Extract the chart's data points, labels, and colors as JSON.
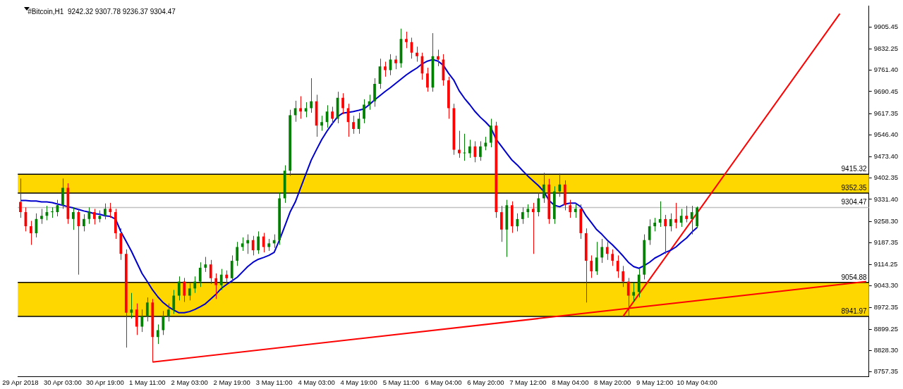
{
  "chart_data": {
    "type": "candlestick",
    "title": "#Bitcoin,H1  9242.32 9307.78 9236.37 9304.47",
    "categories": [
      "29 Apr 2018",
      null,
      null,
      null,
      null,
      null,
      null,
      null,
      "30 Apr 03:00",
      null,
      null,
      null,
      null,
      null,
      null,
      null,
      "30 Apr 19:00",
      null,
      null,
      null,
      null,
      null,
      null,
      null,
      "1 May 11:00",
      null,
      null,
      null,
      null,
      null,
      null,
      null,
      "2 May 03:00",
      null,
      null,
      null,
      null,
      null,
      null,
      null,
      "2 May 19:00",
      null,
      null,
      null,
      null,
      null,
      null,
      null,
      "3 May 11:00",
      null,
      null,
      null,
      null,
      null,
      null,
      null,
      "4 May 03:00",
      null,
      null,
      null,
      null,
      null,
      null,
      null,
      "4 May 19:00",
      null,
      null,
      null,
      null,
      null,
      null,
      null,
      "5 May 11:00",
      null,
      null,
      null,
      null,
      null,
      null,
      null,
      "6 May 04:00",
      null,
      null,
      null,
      null,
      null,
      null,
      null,
      "6 May 20:00",
      null,
      null,
      null,
      null,
      null,
      null,
      null,
      "7 May 12:00",
      null,
      null,
      null,
      null,
      null,
      null,
      null,
      "8 May 04:00",
      null,
      null,
      null,
      null,
      null,
      null,
      null,
      "8 May 20:00",
      null,
      null,
      null,
      null,
      null,
      null,
      null,
      "9 May 12:00",
      null,
      null,
      null,
      null,
      null,
      null,
      null,
      "10 May 04:00",
      null,
      null,
      null,
      null,
      null,
      null,
      null,
      null,
      null,
      null,
      null,
      null,
      null,
      null,
      null,
      null,
      null,
      null,
      null,
      null,
      null,
      null,
      null,
      null,
      null,
      null,
      null,
      null,
      null,
      null,
      null,
      null
    ],
    "ohlc": [
      [
        9323,
        9401,
        9270,
        9289
      ],
      [
        9289,
        9305,
        9225,
        9242
      ],
      [
        9242,
        9260,
        9180,
        9219
      ],
      [
        9219,
        9285,
        9205,
        9266
      ],
      [
        9266,
        9300,
        9250,
        9277
      ],
      [
        9277,
        9310,
        9262,
        9289
      ],
      [
        9289,
        9305,
        9270,
        9289
      ],
      [
        9289,
        9330,
        9275,
        9312
      ],
      [
        9312,
        9401,
        9300,
        9370
      ],
      [
        9370,
        9385,
        9250,
        9266
      ],
      [
        9266,
        9305,
        9230,
        9289
      ],
      [
        9289,
        9300,
        9081,
        9242
      ],
      [
        9242,
        9282,
        9225,
        9266
      ],
      [
        9266,
        9305,
        9250,
        9289
      ],
      [
        9289,
        9300,
        9248,
        9266
      ],
      [
        9266,
        9295,
        9255,
        9277
      ],
      [
        9277,
        9318,
        9265,
        9300
      ],
      [
        9300,
        9320,
        9270,
        9289
      ],
      [
        9289,
        9300,
        9200,
        9219
      ],
      [
        9219,
        9235,
        9130,
        9150
      ],
      [
        9150,
        9165,
        8838,
        8954
      ],
      [
        8954,
        9020,
        8935,
        8965
      ],
      [
        8965,
        8985,
        8880,
        8908
      ],
      [
        8908,
        8965,
        8890,
        8942
      ],
      [
        8942,
        9005,
        8925,
        8988
      ],
      [
        8988,
        9000,
        8790,
        8873
      ],
      [
        8873,
        8915,
        8850,
        8896
      ],
      [
        8896,
        8960,
        8880,
        8942
      ],
      [
        8942,
        8985,
        8925,
        8965
      ],
      [
        8965,
        9030,
        8950,
        9011
      ],
      [
        9011,
        9075,
        8995,
        9058
      ],
      [
        9058,
        9070,
        8990,
        9011
      ],
      [
        9011,
        9052,
        8995,
        9035
      ],
      [
        9035,
        9075,
        9020,
        9058
      ],
      [
        9058,
        9122,
        9040,
        9104
      ],
      [
        9104,
        9140,
        9090,
        9115
      ],
      [
        9115,
        9130,
        9050,
        9069
      ],
      [
        9069,
        9085,
        9000,
        9046
      ],
      [
        9046,
        9100,
        9030,
        9081
      ],
      [
        9081,
        9095,
        9050,
        9069
      ],
      [
        9069,
        9145,
        9055,
        9127
      ],
      [
        9127,
        9190,
        9110,
        9173
      ],
      [
        9173,
        9205,
        9160,
        9185
      ],
      [
        9185,
        9215,
        9150,
        9196
      ],
      [
        9196,
        9210,
        9145,
        9162
      ],
      [
        9162,
        9225,
        9150,
        9208
      ],
      [
        9208,
        9220,
        9155,
        9173
      ],
      [
        9173,
        9200,
        9160,
        9185
      ],
      [
        9185,
        9215,
        9170,
        9196
      ],
      [
        9196,
        9355,
        9180,
        9335
      ],
      [
        9335,
        9445,
        9320,
        9427
      ],
      [
        9427,
        9630,
        9410,
        9612
      ],
      [
        9612,
        9660,
        9590,
        9635
      ],
      [
        9635,
        9675,
        9600,
        9624
      ],
      [
        9624,
        9655,
        9605,
        9635
      ],
      [
        9635,
        9735,
        9620,
        9658
      ],
      [
        9658,
        9680,
        9540,
        9577
      ],
      [
        9577,
        9610,
        9560,
        9589
      ],
      [
        9589,
        9645,
        9570,
        9624
      ],
      [
        9624,
        9640,
        9580,
        9600
      ],
      [
        9600,
        9690,
        9585,
        9670
      ],
      [
        9670,
        9685,
        9615,
        9635
      ],
      [
        9635,
        9650,
        9540,
        9589
      ],
      [
        9589,
        9610,
        9550,
        9566
      ],
      [
        9566,
        9620,
        9550,
        9600
      ],
      [
        9600,
        9665,
        9585,
        9647
      ],
      [
        9647,
        9680,
        9630,
        9658
      ],
      [
        9658,
        9735,
        9640,
        9716
      ],
      [
        9716,
        9800,
        9700,
        9774
      ],
      [
        9774,
        9790,
        9740,
        9762
      ],
      [
        9762,
        9815,
        9745,
        9797
      ],
      [
        9797,
        9810,
        9765,
        9785
      ],
      [
        9785,
        9900,
        9770,
        9866
      ],
      [
        9866,
        9890,
        9835,
        9855
      ],
      [
        9855,
        9870,
        9800,
        9820
      ],
      [
        9820,
        9840,
        9790,
        9808
      ],
      [
        9808,
        9820,
        9730,
        9751
      ],
      [
        9751,
        9770,
        9690,
        9704
      ],
      [
        9704,
        9885,
        9690,
        9808
      ],
      [
        9808,
        9830,
        9775,
        9797
      ],
      [
        9797,
        9815,
        9710,
        9728
      ],
      [
        9728,
        9740,
        9600,
        9635
      ],
      [
        9635,
        9650,
        9480,
        9497
      ],
      [
        9497,
        9560,
        9470,
        9485
      ],
      [
        9485,
        9550,
        9460,
        9485
      ],
      [
        9485,
        9530,
        9470,
        9508
      ],
      [
        9508,
        9525,
        9455,
        9473
      ],
      [
        9473,
        9525,
        9460,
        9508
      ],
      [
        9508,
        9540,
        9495,
        9520
      ],
      [
        9520,
        9600,
        9505,
        9577
      ],
      [
        9577,
        9590,
        9270,
        9289
      ],
      [
        9289,
        9310,
        9190,
        9231
      ],
      [
        9231,
        9330,
        9140,
        9312
      ],
      [
        9312,
        9325,
        9220,
        9242
      ],
      [
        9242,
        9285,
        9225,
        9266
      ],
      [
        9266,
        9305,
        9250,
        9289
      ],
      [
        9289,
        9315,
        9270,
        9300
      ],
      [
        9300,
        9320,
        9150,
        9289
      ],
      [
        9289,
        9355,
        9275,
        9335
      ],
      [
        9335,
        9420,
        9320,
        9381
      ],
      [
        9381,
        9400,
        9250,
        9266
      ],
      [
        9266,
        9375,
        9250,
        9358
      ],
      [
        9358,
        9418,
        9340,
        9381
      ],
      [
        9381,
        9395,
        9295,
        9312
      ],
      [
        9312,
        9330,
        9270,
        9289
      ],
      [
        9289,
        9315,
        9270,
        9300
      ],
      [
        9300,
        9315,
        9200,
        9219
      ],
      [
        9219,
        9235,
        8988,
        9127
      ],
      [
        9127,
        9145,
        9070,
        9092
      ],
      [
        9092,
        9190,
        9080,
        9138
      ],
      [
        9138,
        9200,
        9120,
        9173
      ],
      [
        9173,
        9190,
        9130,
        9150
      ],
      [
        9150,
        9165,
        9110,
        9127
      ],
      [
        9127,
        9145,
        9070,
        9092
      ],
      [
        9092,
        9110,
        9040,
        9058
      ],
      [
        9058,
        9070,
        8942,
        9011
      ],
      [
        9011,
        9055,
        8990,
        9023
      ],
      [
        9023,
        9100,
        9005,
        9081
      ],
      [
        9081,
        9215,
        9065,
        9196
      ],
      [
        9196,
        9265,
        9180,
        9242
      ],
      [
        9242,
        9270,
        9225,
        9254
      ],
      [
        9254,
        9325,
        9240,
        9266
      ],
      [
        9266,
        9280,
        9150,
        9242
      ],
      [
        9242,
        9285,
        9225,
        9266
      ],
      [
        9266,
        9320,
        9235,
        9254
      ],
      [
        9254,
        9300,
        9240,
        9277
      ],
      [
        9277,
        9310,
        9255,
        9266
      ],
      [
        9266,
        9310,
        9215,
        9289
      ],
      [
        9242.32,
        9307.78,
        9236.37,
        9304.47
      ],
      null,
      null,
      null,
      null,
      null,
      null,
      null,
      null,
      null,
      null,
      null,
      null,
      null,
      null,
      null,
      null,
      null,
      null,
      null,
      null,
      null,
      null,
      null,
      null,
      null,
      null,
      null,
      null,
      null,
      null,
      null,
      null
    ],
    "series": [
      {
        "type": "line",
        "color": "#0000cc",
        "values": [
          9328,
          9328,
          9326,
          9326,
          9323,
          9323,
          9321,
          9316,
          9312,
          9307,
          9303,
          9298,
          9293,
          9289,
          9284,
          9282,
          9277,
          9275,
          9266,
          9224,
          9192,
          9159,
          9122,
          9085,
          9058,
          9030,
          9007,
          8988,
          8974,
          8963,
          8954,
          8954,
          8958,
          8965,
          8974,
          8984,
          9000,
          9016,
          9035,
          9048,
          9060,
          9072,
          9090,
          9108,
          9122,
          9132,
          9138,
          9145,
          9155,
          9196,
          9242,
          9289,
          9323,
          9370,
          9416,
          9462,
          9497,
          9531,
          9559,
          9584,
          9607,
          9619,
          9621,
          9624,
          9628,
          9633,
          9647,
          9663,
          9677,
          9691,
          9704,
          9718,
          9732,
          9746,
          9758,
          9769,
          9783,
          9792,
          9797,
          9792,
          9778,
          9751,
          9728,
          9693,
          9668,
          9647,
          9624,
          9605,
          9589,
          9570,
          9531,
          9508,
          9485,
          9462,
          9446,
          9427,
          9409,
          9393,
          9377,
          9358,
          9328,
          9312,
          9307,
          9316,
          9319,
          9319,
          9307,
          9277,
          9254,
          9231,
          9215,
          9196,
          9180,
          9162,
          9143,
          9122,
          9108,
          9102,
          9111,
          9122,
          9136,
          9145,
          9155,
          9162,
          9173,
          9189,
          9203,
          9222,
          9238,
          null,
          null,
          null,
          null,
          null,
          null,
          null,
          null,
          null,
          null,
          null,
          null,
          null,
          null,
          null,
          null,
          null,
          null,
          null,
          null,
          null,
          null,
          null,
          null,
          null,
          null,
          null,
          null,
          null,
          null,
          null,
          null
        ]
      },
      {
        "type": "line",
        "color": "#ff0000",
        "values": [
          null,
          null,
          null,
          null,
          null,
          null,
          null,
          null,
          null,
          null,
          null,
          null,
          null,
          null,
          null,
          null,
          null,
          null,
          null,
          null,
          null,
          null,
          null,
          null,
          null,
          8790,
          null,
          null,
          null,
          null,
          null,
          null,
          null,
          null,
          null,
          null,
          null,
          null,
          null,
          null,
          null,
          null,
          null,
          null,
          null,
          null,
          null,
          null,
          null,
          null,
          null,
          null,
          null,
          null,
          null,
          null,
          null,
          null,
          null,
          null,
          null,
          null,
          null,
          null,
          null,
          null,
          null,
          null,
          null,
          null,
          null,
          null,
          null,
          null,
          null,
          null,
          null,
          null,
          null,
          null,
          null,
          null,
          null,
          null,
          null,
          null,
          null,
          null,
          null,
          null,
          null,
          null,
          null,
          null,
          null,
          null,
          null,
          null,
          null,
          null,
          null,
          null,
          null,
          null,
          null,
          null,
          null,
          null,
          null,
          null,
          null,
          null,
          null,
          null,
          null,
          null,
          null,
          null,
          null,
          null,
          null,
          null,
          null,
          null,
          null,
          null,
          null,
          null,
          null,
          null,
          null,
          null,
          null,
          null,
          null,
          null,
          null,
          null,
          null,
          null,
          null,
          null,
          null,
          null,
          null,
          null,
          null,
          null,
          null,
          null,
          null,
          null,
          null,
          null,
          null,
          null,
          null,
          null,
          null,
          null,
          9058
        ]
      },
      {
        "type": "line",
        "color": "#ff0000",
        "values": [
          null,
          null,
          null,
          null,
          null,
          null,
          null,
          null,
          null,
          null,
          null,
          null,
          null,
          null,
          null,
          null,
          null,
          null,
          null,
          null,
          null,
          null,
          null,
          null,
          null,
          null,
          null,
          null,
          null,
          null,
          null,
          null,
          null,
          null,
          null,
          null,
          null,
          null,
          null,
          null,
          null,
          null,
          null,
          null,
          null,
          null,
          null,
          null,
          null,
          null,
          null,
          null,
          null,
          null,
          null,
          null,
          null,
          null,
          null,
          null,
          null,
          null,
          null,
          null,
          null,
          null,
          null,
          null,
          null,
          null,
          null,
          null,
          null,
          null,
          null,
          null,
          null,
          null,
          null,
          null,
          null,
          null,
          null,
          null,
          null,
          null,
          null,
          null,
          null,
          null,
          null,
          null,
          null,
          null,
          null,
          null,
          null,
          null,
          null,
          null,
          null,
          null,
          null,
          null,
          null,
          null,
          null,
          null,
          null,
          null,
          null,
          null,
          null,
          null,
          8942,
          null,
          null,
          null,
          null,
          null,
          null,
          null,
          null,
          null,
          null,
          null,
          null,
          null,
          null,
          null,
          null,
          null,
          null,
          null,
          null,
          null,
          null,
          null,
          null,
          null,
          null,
          null,
          null,
          null,
          null,
          null,
          null,
          null,
          null,
          null,
          null,
          null,
          null,
          null,
          null,
          9950,
          null,
          null,
          null,
          null,
          null
        ]
      }
    ],
    "ref_lines": [
      {
        "axis": "y",
        "value": 9415.32,
        "label": "9415.32",
        "color": "#000000"
      },
      {
        "axis": "y",
        "value": 9352.35,
        "label": "9352.35",
        "color": "#000000"
      },
      {
        "axis": "y",
        "value": 9304.47,
        "label": "9304.47",
        "color": "#c0c0c0"
      },
      {
        "axis": "y",
        "value": 9054.88,
        "label": "9054.88",
        "color": "#000000"
      },
      {
        "axis": "y",
        "value": 8941.97,
        "label": "8941.97",
        "color": "#000000"
      }
    ],
    "bands": [
      {
        "axis": "y",
        "from": 9352.35,
        "to": 9415.32,
        "color": "#ffd700"
      },
      {
        "axis": "y",
        "from": 8941.97,
        "to": 9054.88,
        "color": "#ffd700"
      }
    ],
    "ylim": [
      8741,
      9975
    ],
    "yticks": [
      8757.35,
      {
        "value": 8828.3,
        "label": "8828.30"
      },
      8899.25,
      8972.35,
      {
        "value": 9043.3,
        "label": "9043.30"
      },
      9114.25,
      9187.35,
      {
        "value": 9258.3,
        "label": "9258.30"
      },
      {
        "value": 9331.4,
        "label": "9331.40"
      },
      9402.35,
      {
        "value": 9473.4,
        "label": "9473.40"
      },
      {
        "value": 9546.4,
        "label": "9546.40"
      },
      9617.35,
      9690.45,
      {
        "value": 9761.4,
        "label": "9761.40"
      },
      9832.25,
      9905.45
    ],
    "legend": false,
    "grid": false
  }
}
